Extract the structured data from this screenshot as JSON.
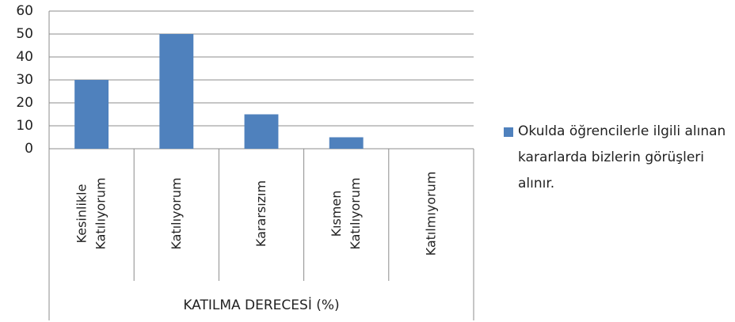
{
  "chart_data": {
    "type": "bar",
    "categories": [
      "Kesinlikle Katılıyorum",
      "Katılıyorum",
      "Kararsızım",
      "Kısmen Katılıyorum",
      "Katılmıyorum"
    ],
    "series": [
      {
        "name": "Okulda öğrencilerle ilgili alınan kararlarda bizlerin görüşleri alınır.",
        "color": "#4f81bd",
        "values": [
          30,
          50,
          15,
          5,
          0
        ]
      }
    ],
    "x_label": "KATILMA DERECESİ (%)",
    "ylim": [
      0,
      60
    ],
    "yticks": [
      0,
      10,
      20,
      30,
      40,
      50,
      60
    ],
    "grid": true,
    "legend": "right"
  }
}
